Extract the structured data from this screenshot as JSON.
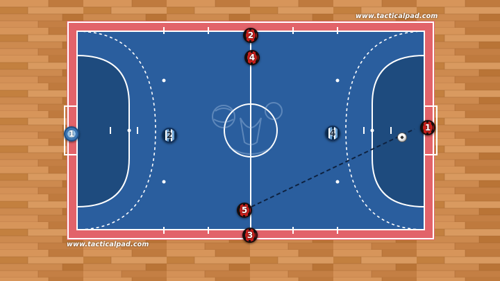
{
  "watermark": {
    "top": "www.tacticalpad.com",
    "bottom": "www.tacticalpad.com"
  },
  "players": {
    "red_2": "2",
    "red_4": "4",
    "red_5": "5",
    "red_3": "3",
    "red_gk": "1",
    "blue_2": "2",
    "blue_4": "4",
    "blue_gk": "1"
  },
  "colors": {
    "court": "#2a5e9e",
    "boundary": "#e2636a",
    "penalty_area": "#1e4b7e",
    "red_team": "#c8201c",
    "blue_team": "#6aa2d6"
  },
  "icons": {
    "ball": "futsal-ball-icon",
    "logo": "center-logo-icon"
  }
}
